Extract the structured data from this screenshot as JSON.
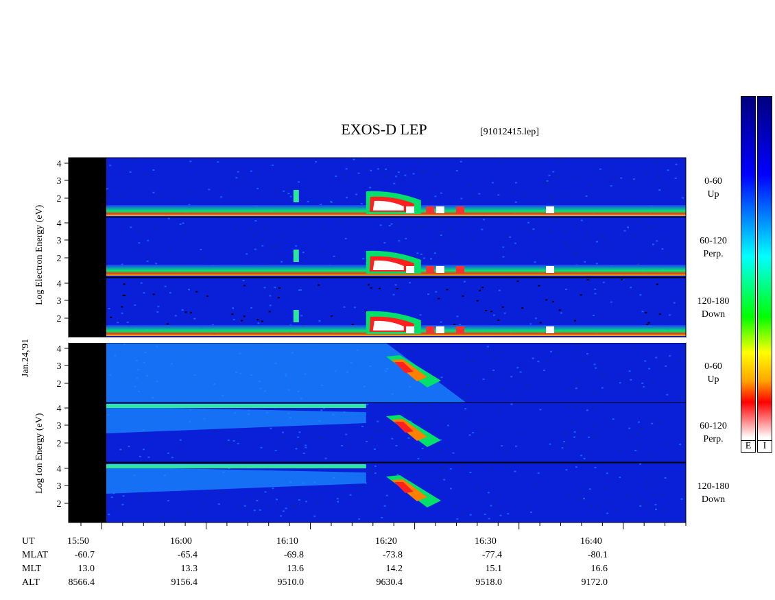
{
  "chart_data": {
    "type": "heatmap",
    "title": "EXOS-D LEP",
    "subtitle": "[91012415.lep]",
    "date_label": "Jan.24,'91",
    "x_axis": {
      "label": "UT",
      "ticks": [
        "15:50",
        "16:00",
        "16:10",
        "16:20",
        "16:30",
        "16:40"
      ],
      "range": [
        "15:48",
        "16:48"
      ]
    },
    "ephemeris": [
      {
        "label": "MLAT",
        "values": [
          "-60.7",
          "-65.4",
          "-69.8",
          "-73.8",
          "-77.4",
          "-80.1"
        ]
      },
      {
        "label": "MLT",
        "values": [
          "13.0",
          "13.3",
          "13.6",
          "14.2",
          "15.1",
          "16.6"
        ]
      },
      {
        "label": "ALT",
        "values": [
          "8566.4",
          "9156.4",
          "9510.0",
          "9630.4",
          "9518.0",
          "9172.0"
        ]
      }
    ],
    "groups": [
      {
        "ylabel": "Log Electron Energy (eV)",
        "panels": [
          {
            "angle": "0-60",
            "dir": "Up",
            "yticks": [
              "4",
              "3",
              "2"
            ]
          },
          {
            "angle": "60-120",
            "dir": "Perp.",
            "yticks": [
              "4",
              "3",
              "2"
            ]
          },
          {
            "angle": "120-180",
            "dir": "Down",
            "yticks": [
              "4",
              "3",
              "2"
            ]
          }
        ]
      },
      {
        "ylabel": "Log Ion Energy (eV)",
        "panels": [
          {
            "angle": "0-60",
            "dir": "Up",
            "yticks": [
              "4",
              "3",
              "2"
            ]
          },
          {
            "angle": "60-120",
            "dir": "Perp.",
            "yticks": [
              "4",
              "3",
              "2"
            ]
          },
          {
            "angle": "120-180",
            "dir": "Down",
            "yticks": [
              "4",
              "3",
              "2"
            ]
          }
        ]
      }
    ],
    "colorbars": [
      {
        "label": "E"
      },
      {
        "label": "I"
      }
    ],
    "colormap": [
      "#ffffff",
      "#ff0000",
      "#ffa500",
      "#ffff00",
      "#00ff00",
      "#00ffff",
      "#0000ff",
      "#000080"
    ]
  }
}
